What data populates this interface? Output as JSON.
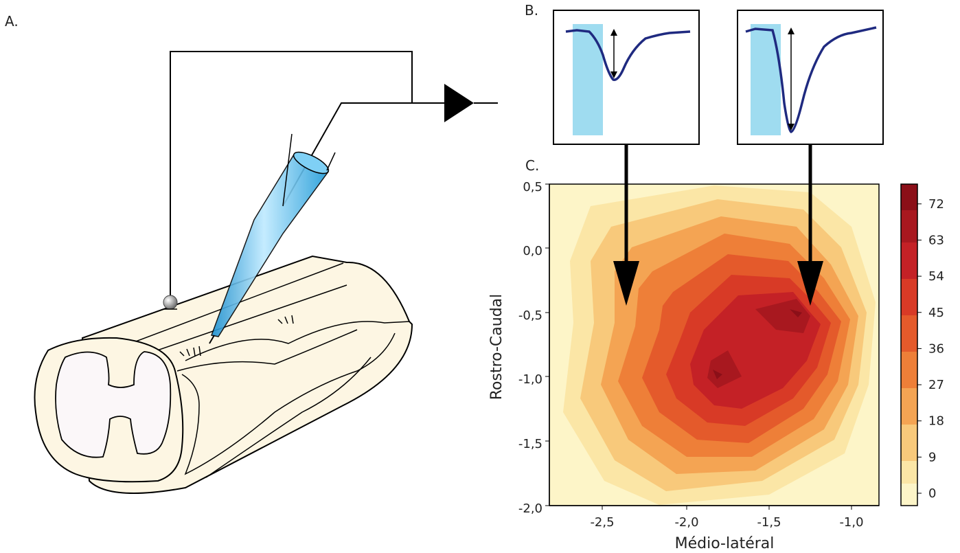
{
  "panels": {
    "a": "A.",
    "b": "B.",
    "c": "C."
  },
  "colors": {
    "trace": "#1f2a80",
    "stim_window": "#9fdcf0",
    "pipette": "#2aa8e0",
    "cord_fill": "#fdf6e3",
    "grey_matter": "#fbf7f9"
  },
  "chart_data": {
    "type": "heatmap",
    "title": "",
    "xlabel": "Médio-latéral",
    "ylabel": "Rostro-Caudal",
    "xlim": [
      -2.85,
      -0.8
    ],
    "ylim": [
      -2.0,
      0.5
    ],
    "x_ticks": [
      "-2,5",
      "-2,0",
      "-1,5",
      "-1,0"
    ],
    "x_tick_values": [
      -2.5,
      -2.0,
      -1.5,
      -1.0
    ],
    "y_ticks": [
      "0,5",
      "0,0",
      "-0,5",
      "-1,0",
      "-1,5",
      "-2,0"
    ],
    "y_tick_values": [
      0.5,
      0.0,
      -0.5,
      -1.0,
      -1.5,
      -2.0
    ],
    "colorbar": {
      "min": 0,
      "max": 80,
      "ticks": [
        "0",
        "9",
        "18",
        "27",
        "36",
        "45",
        "54",
        "63",
        "72"
      ],
      "tick_values": [
        0,
        9,
        18,
        27,
        36,
        45,
        54,
        63,
        72
      ]
    },
    "peaks": [
      {
        "x": -1.3,
        "y": -0.52,
        "value": 78
      },
      {
        "x": -1.8,
        "y": -1.0,
        "value": 76
      }
    ],
    "arrows": [
      {
        "from_trace": 0,
        "target_x": -2.35,
        "target_y": -0.22
      },
      {
        "from_trace": 1,
        "target_x": -1.25,
        "target_y": -0.22
      }
    ],
    "traces": [
      {
        "stim_window": [
          0.02,
          0.28
        ],
        "baseline": 0.08,
        "trough": 0.47
      },
      {
        "stim_window": [
          0.02,
          0.28
        ],
        "baseline": 0.08,
        "trough": 0.93
      }
    ]
  }
}
